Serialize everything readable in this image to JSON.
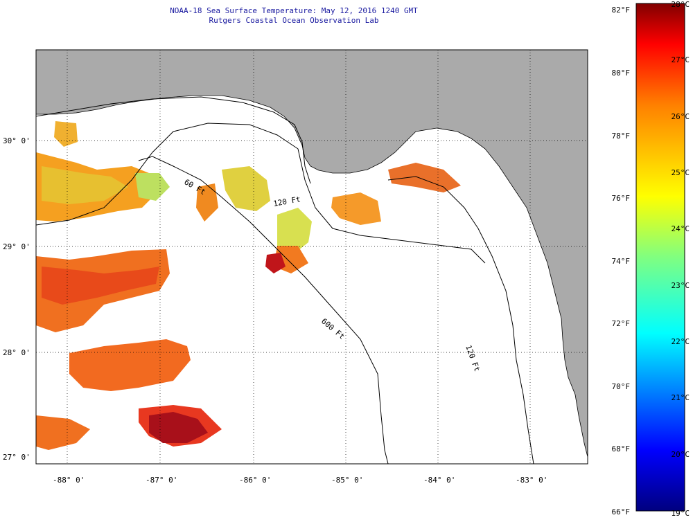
{
  "title": {
    "line1": "NOAA-18 Sea Surface Temperature:  May 12, 2016 1240 GMT",
    "line2": "Rutgers Coastal Ocean Observation Lab"
  },
  "map": {
    "lat_labels": [
      "30° 0'",
      "29° 0'",
      "28° 0'",
      "27° 0'"
    ],
    "lon_labels": [
      "-88° 0'",
      "-87° 0'",
      "-86° 0'",
      "-85° 0'",
      "-84° 0'",
      "-83° 0'"
    ],
    "isobath_labels": [
      "60 Ft",
      "120 Ft",
      "600 Ft",
      "120 Ft"
    ],
    "colors": {
      "land": "#aaaaaa",
      "ocean": "#ffffff",
      "grid": "#000000"
    }
  },
  "colorbar": {
    "fahrenheit": [
      "82°F",
      "80°F",
      "78°F",
      "76°F",
      "74°F",
      "72°F",
      "70°F",
      "68°F",
      "66°F"
    ],
    "celsius": [
      "28°C",
      "27°C",
      "26°C",
      "25°C",
      "24°C",
      "23°C",
      "22°C",
      "21°C",
      "20°C",
      "19°C"
    ],
    "range_celsius": [
      19,
      28
    ],
    "range_fahrenheit": [
      66,
      82
    ]
  }
}
